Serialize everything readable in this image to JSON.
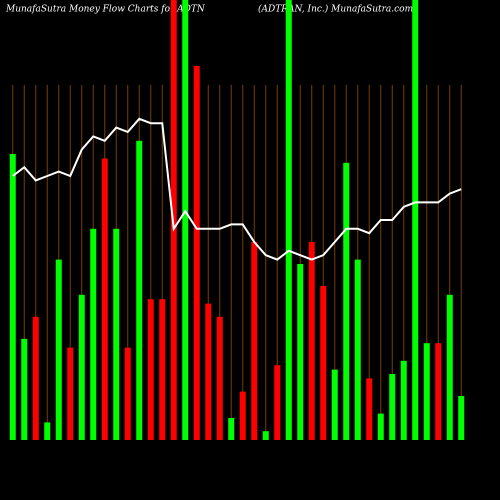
{
  "chart_data": {
    "type": "bar",
    "title": "MunafaSutra  Money Flow  Charts for ADTN",
    "subtitle": "(ADTRAN, Inc.) MunafaSutra.com",
    "ylim": [
      0,
      100
    ],
    "grid": true,
    "grid_color": "#7a3f00",
    "values": [
      65,
      23,
      28,
      4,
      41,
      21,
      33,
      48,
      64,
      48,
      21,
      68,
      32,
      32,
      100,
      100,
      85,
      31,
      28,
      5,
      11,
      45,
      2,
      17,
      100,
      40,
      45,
      35,
      16,
      63,
      41,
      14,
      6,
      15,
      18,
      100,
      22,
      22,
      33,
      10
    ],
    "colors": [
      "#00ff00",
      "#00ff00",
      "#ff0000",
      "#00ff00",
      "#00ff00",
      "#ff0000",
      "#00ff00",
      "#00ff00",
      "#ff0000",
      "#00ff00",
      "#ff0000",
      "#00ff00",
      "#ff0000",
      "#ff0000",
      "#ff0000",
      "#00ff00",
      "#ff0000",
      "#ff0000",
      "#ff0000",
      "#00ff00",
      "#ff0000",
      "#ff0000",
      "#00ff00",
      "#ff0000",
      "#00ff00",
      "#00ff00",
      "#ff0000",
      "#ff0000",
      "#00ff00",
      "#00ff00",
      "#00ff00",
      "#ff0000",
      "#00ff00",
      "#00ff00",
      "#00ff00",
      "#00ff00",
      "#00ff00",
      "#ff0000",
      "#00ff00",
      "#00ff00"
    ],
    "line_values": [
      60,
      62,
      59,
      60,
      61,
      60,
      66,
      69,
      68,
      71,
      70,
      73,
      72,
      72,
      48,
      52,
      48,
      48,
      48,
      49,
      49,
      45,
      42,
      41,
      43,
      42,
      41,
      42,
      45,
      48,
      48,
      47,
      50,
      50,
      53,
      54,
      54,
      54,
      56,
      57
    ],
    "line_color": "#ffffff"
  }
}
